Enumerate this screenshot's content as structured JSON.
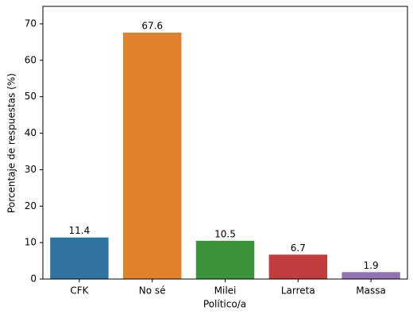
{
  "chart_data": {
    "type": "bar",
    "x_label": "Político/a",
    "y_label": "Porcentaje de respuestas (%)",
    "categories": [
      "CFK",
      "No sé",
      "Milei",
      "Larreta",
      "Massa"
    ],
    "values": [
      11.4,
      67.6,
      10.5,
      6.7,
      1.9
    ],
    "colors": [
      "#3274a1",
      "#e1812c",
      "#3a923a",
      "#c03d3e",
      "#9372b2"
    ],
    "ylim": [
      0,
      74.8
    ],
    "yticks": [
      0,
      10,
      20,
      30,
      40,
      50,
      60,
      70
    ],
    "grid": false
  }
}
